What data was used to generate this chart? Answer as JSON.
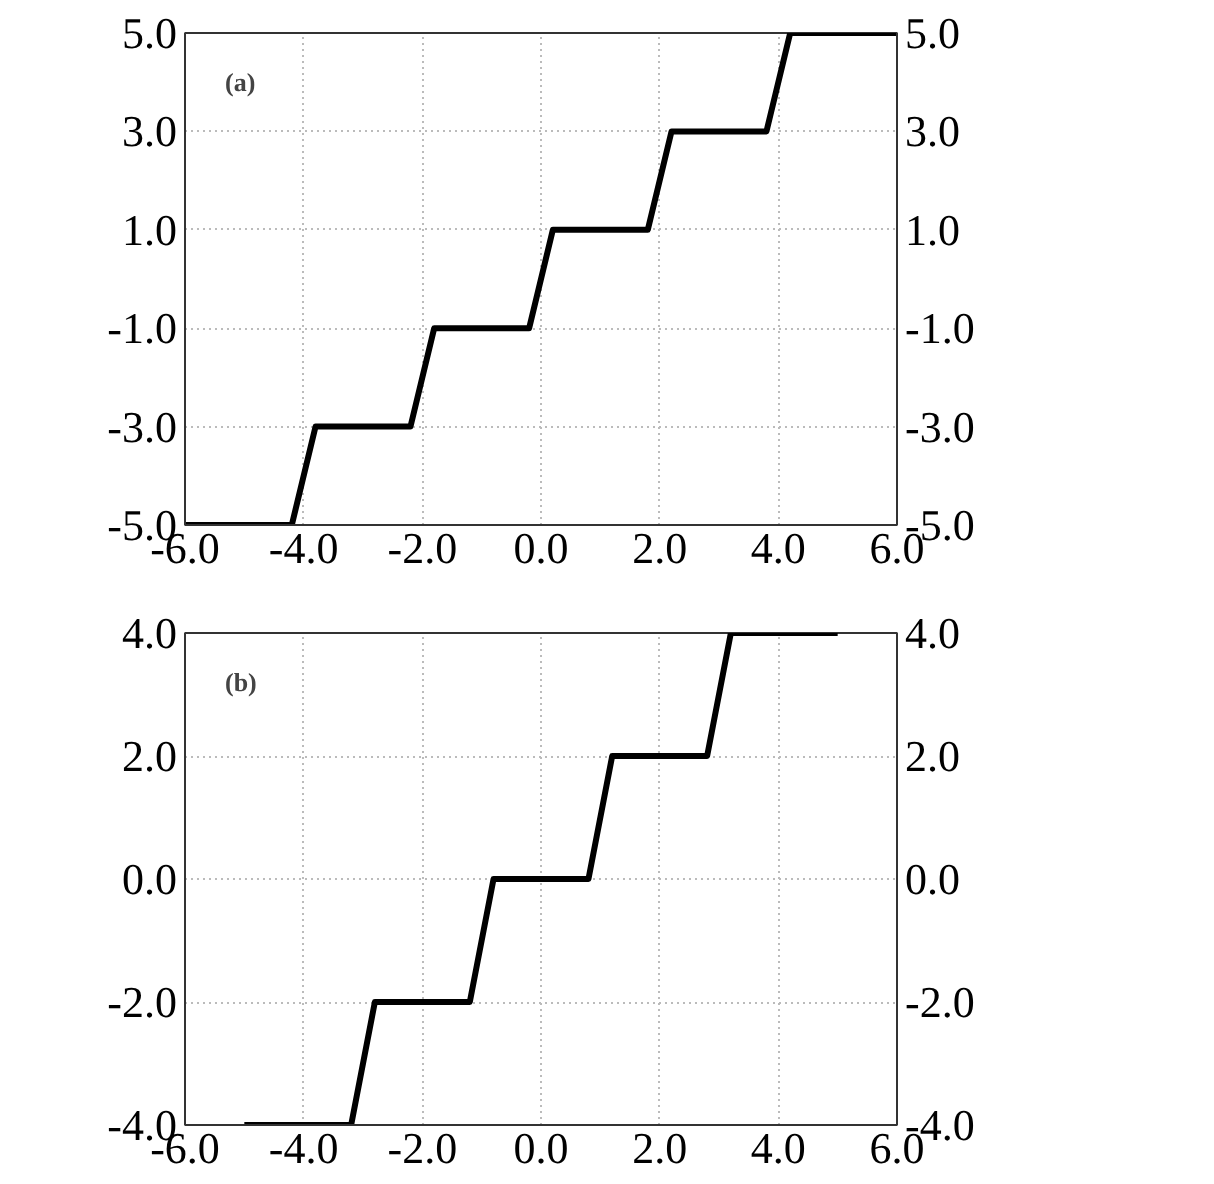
{
  "chart_data": [
    {
      "type": "line",
      "annotations": [
        "(a)"
      ],
      "grid": true,
      "marker": "none",
      "line_style": "solid",
      "series": [
        {
          "color": "#000000",
          "x": [
            -6,
            -4.2,
            -3.8,
            -2.2,
            -1.8,
            -0.2,
            0.2,
            1.8,
            2.2,
            3.8,
            4.2,
            6
          ],
          "values": [
            -5,
            -5,
            -3,
            -3,
            -1,
            -1,
            1,
            1,
            3,
            3,
            5,
            5
          ]
        }
      ],
      "xlim": [
        -6,
        6
      ],
      "xticks": [
        {
          "value": -6,
          "label": "-6.0"
        },
        {
          "value": -4,
          "label": "-4.0"
        },
        {
          "value": -2,
          "label": "-2.0"
        },
        {
          "value": 0,
          "label": "0.0"
        },
        {
          "value": 2,
          "label": "2.0"
        },
        {
          "value": 4,
          "label": "4.0"
        },
        {
          "value": 6,
          "label": "6.0"
        }
      ],
      "ylim": [
        -5,
        5
      ],
      "yticks": [
        {
          "value": -5,
          "label": "-5.0"
        },
        {
          "value": -3,
          "label": "-3.0"
        },
        {
          "value": -1,
          "label": "-1.0"
        },
        {
          "value": 1,
          "label": "1.0"
        },
        {
          "value": 3,
          "label": "3.0"
        },
        {
          "value": 5,
          "label": "5.0"
        }
      ],
      "y2lim": [
        -5,
        5
      ],
      "y2ticks": [
        {
          "value": -5,
          "label": "-5.0"
        },
        {
          "value": -3,
          "label": "-3.0"
        },
        {
          "value": -1,
          "label": "-1.0"
        },
        {
          "value": 1,
          "label": "1.0"
        },
        {
          "value": 3,
          "label": "3.0"
        },
        {
          "value": 5,
          "label": "5.0"
        }
      ]
    },
    {
      "type": "line",
      "annotations": [
        "(b)"
      ],
      "grid": true,
      "marker": "none",
      "line_style": "solid",
      "series": [
        {
          "color": "#000000",
          "x": [
            -5,
            -3.2,
            -2.8,
            -1.2,
            -0.8,
            0.8,
            1.2,
            2.8,
            3.2,
            5
          ],
          "values": [
            -4,
            -4,
            -2,
            -2,
            0,
            0,
            2,
            2,
            4,
            4
          ]
        }
      ],
      "xlim": [
        -6,
        6
      ],
      "xticks": [
        {
          "value": -6,
          "label": "-6.0"
        },
        {
          "value": -4,
          "label": "-4.0"
        },
        {
          "value": -2,
          "label": "-2.0"
        },
        {
          "value": 0,
          "label": "0.0"
        },
        {
          "value": 2,
          "label": "2.0"
        },
        {
          "value": 4,
          "label": "4.0"
        },
        {
          "value": 6,
          "label": "6.0"
        }
      ],
      "ylim": [
        -4,
        4
      ],
      "yticks": [
        {
          "value": -4,
          "label": "-4.0"
        },
        {
          "value": -2,
          "label": "-2.0"
        },
        {
          "value": 0,
          "label": "0.0"
        },
        {
          "value": 2,
          "label": "2.0"
        },
        {
          "value": 4,
          "label": "4.0"
        }
      ],
      "y2lim": [
        -4,
        4
      ],
      "y2ticks": [
        {
          "value": -4,
          "label": "-4.0"
        },
        {
          "value": -2,
          "label": "-2.0"
        },
        {
          "value": 0,
          "label": "0.0"
        },
        {
          "value": 2,
          "label": "2.0"
        },
        {
          "value": 4,
          "label": "4.0"
        }
      ]
    }
  ]
}
